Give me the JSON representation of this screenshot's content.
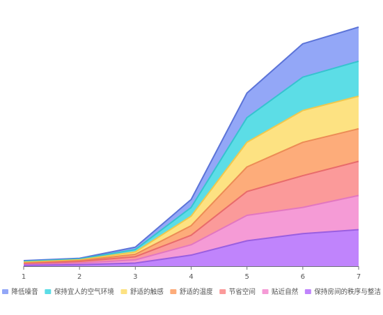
{
  "chart_data": {
    "type": "area",
    "stacked": true,
    "x": [
      1,
      2,
      3,
      4,
      5,
      6,
      7
    ],
    "ylim": [
      0,
      300
    ],
    "grid": false,
    "legend_position": "bottom",
    "series": [
      {
        "name": "保持房间的秩序与整洁",
        "color": "#c084fc",
        "line_color": "#9a5ee0",
        "values": [
          1,
          2,
          4,
          14,
          32,
          41,
          46
        ]
      },
      {
        "name": "贴近自然",
        "color": "#f59bd6",
        "line_color": "#e277c0",
        "values": [
          1,
          2,
          4,
          13,
          32,
          33,
          43
        ]
      },
      {
        "name": "节省空间",
        "color": "#fb9a9a",
        "line_color": "#e86b6b",
        "values": [
          1,
          2,
          4,
          12,
          30,
          40,
          43
        ]
      },
      {
        "name": "舒适的温度",
        "color": "#fdac7a",
        "line_color": "#ec8c55",
        "values": [
          1,
          1,
          3,
          12,
          31,
          42,
          41
        ]
      },
      {
        "name": "舒适的触感",
        "color": "#fde282",
        "line_color": "#f0c84d",
        "values": [
          1,
          1,
          3,
          12,
          31,
          40,
          41
        ]
      },
      {
        "name": "保持宜人的空气环境",
        "color": "#5cdde6",
        "line_color": "#36c3cf",
        "values": [
          1,
          1,
          3,
          11,
          31,
          42,
          44
        ]
      },
      {
        "name": "降低噪音",
        "color": "#93a7f7",
        "line_color": "#5c74d8",
        "values": [
          1,
          1,
          3,
          10,
          31,
          42,
          43
        ]
      }
    ],
    "legend_order": [
      6,
      5,
      4,
      3,
      2,
      1,
      0
    ]
  }
}
